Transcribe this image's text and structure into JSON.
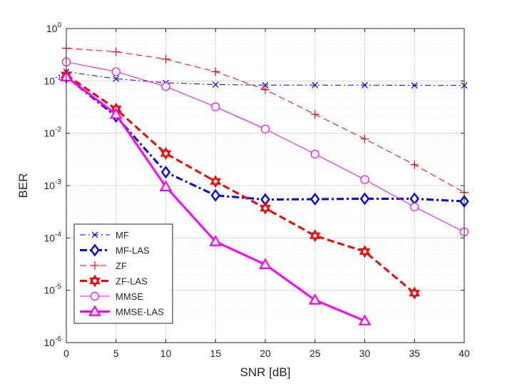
{
  "chart_data": {
    "type": "line",
    "title": "",
    "xlabel": "SNR [dB]",
    "ylabel": "BER",
    "xlim": [
      0,
      40
    ],
    "ylim_log10": [
      -6,
      0
    ],
    "yscale": "log",
    "grid": true,
    "legend_position": "bottom-left",
    "x_ticks": [
      0,
      5,
      10,
      15,
      20,
      25,
      30,
      35,
      40
    ],
    "y_tick_exponents": [
      0,
      -1,
      -2,
      -3,
      -4,
      -5,
      -6
    ],
    "y_tick_base": "10",
    "series": [
      {
        "name": "MF",
        "color": "#0000ff",
        "line": "dashdot",
        "marker": "x",
        "width": 1,
        "x": [
          0,
          5,
          10,
          15,
          20,
          25,
          30,
          35,
          40
        ],
        "y": [
          0.15,
          0.11,
          0.092,
          0.085,
          0.083,
          0.083,
          0.083,
          0.082,
          0.082
        ]
      },
      {
        "name": "MF-LAS",
        "color": "#0000ff",
        "line": "dashdot",
        "marker": "diamond",
        "width": 3,
        "x": [
          0,
          5,
          10,
          15,
          20,
          25,
          30,
          35,
          40
        ],
        "y": [
          0.12,
          0.021,
          0.0018,
          0.00065,
          0.00054,
          0.00055,
          0.00056,
          0.00056,
          0.0005
        ]
      },
      {
        "name": "ZF",
        "color": "#ff0000",
        "line": "dashed",
        "marker": "plus",
        "width": 1,
        "x": [
          0,
          5,
          10,
          15,
          20,
          25,
          30,
          35,
          40
        ],
        "y": [
          0.42,
          0.36,
          0.26,
          0.15,
          0.068,
          0.023,
          0.0078,
          0.0025,
          0.00074
        ]
      },
      {
        "name": "ZF-LAS",
        "color": "#ff0000",
        "line": "dashed",
        "marker": "hexagram",
        "width": 3,
        "x": [
          0,
          5,
          10,
          15,
          20,
          25,
          30,
          35
        ],
        "y": [
          0.13,
          0.029,
          0.0041,
          0.0012,
          0.00037,
          0.00011,
          5.5e-05,
          8.8e-06
        ]
      },
      {
        "name": "MMSE",
        "color": "#ff00ff",
        "line": "solid",
        "marker": "circle",
        "width": 1,
        "x": [
          0,
          5,
          10,
          15,
          20,
          25,
          30,
          35,
          40
        ],
        "y": [
          0.23,
          0.15,
          0.078,
          0.032,
          0.012,
          0.004,
          0.0013,
          0.00039,
          0.00013
        ]
      },
      {
        "name": "MMSE-LAS",
        "color": "#ff00ff",
        "line": "solid",
        "marker": "triangle",
        "width": 3,
        "x": [
          0,
          5,
          10,
          15,
          20,
          25,
          30
        ],
        "y": [
          0.12,
          0.023,
          0.00095,
          8.5e-05,
          3.1e-05,
          6.5e-06,
          2.6e-06
        ]
      }
    ]
  }
}
